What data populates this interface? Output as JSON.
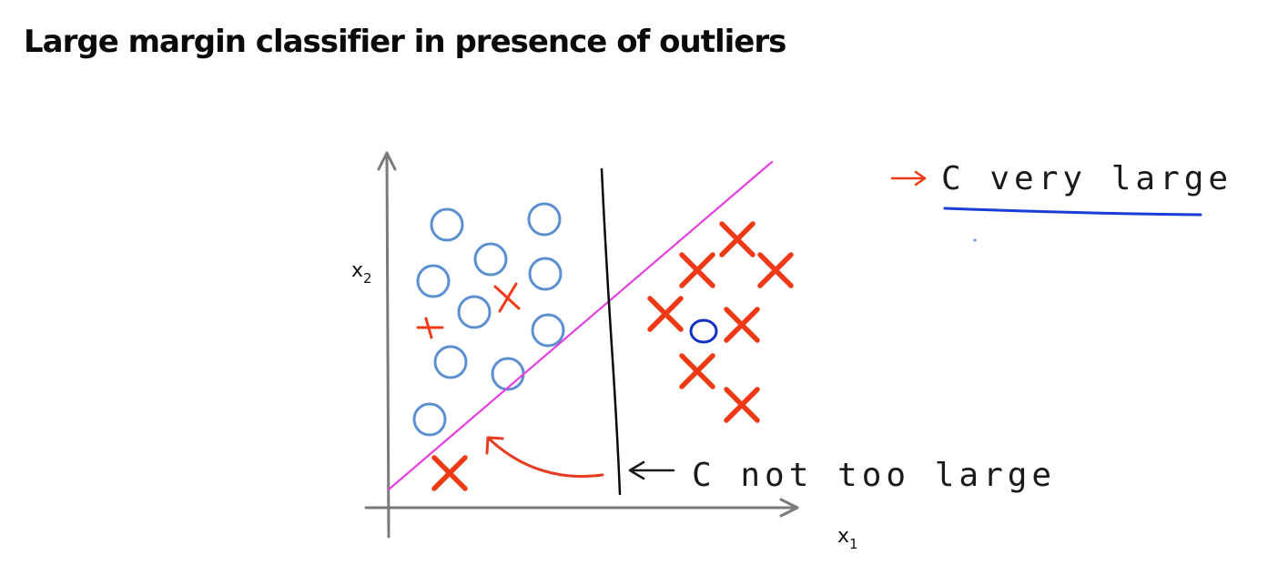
{
  "slide": {
    "title": "Large margin classifier in presence of outliers"
  },
  "axes": {
    "x_label": "x",
    "x_subscript": "1",
    "y_label": "x",
    "y_subscript": "2"
  },
  "annotations": {
    "c_very_large": "C very large",
    "c_not_too_large": "C not too large"
  },
  "colors": {
    "positive_x": "#f03a17",
    "negative_o": "#5b8fd0",
    "outlier_o": "#1230c4",
    "boundary_large_c": "#e63fe0",
    "boundary_small_c": "#0a0a0a",
    "underline": "#1a3cd6",
    "arrow": "#e83a1e"
  }
}
